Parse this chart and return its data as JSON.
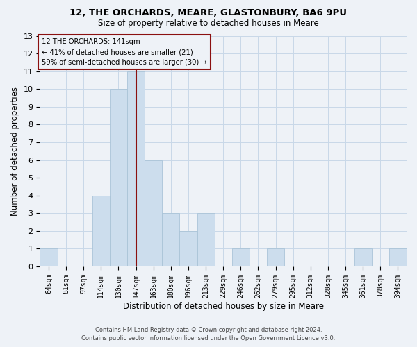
{
  "title": "12, THE ORCHARDS, MEARE, GLASTONBURY, BA6 9PU",
  "subtitle": "Size of property relative to detached houses in Meare",
  "xlabel": "Distribution of detached houses by size in Meare",
  "ylabel": "Number of detached properties",
  "footer_line1": "Contains HM Land Registry data © Crown copyright and database right 2024.",
  "footer_line2": "Contains public sector information licensed under the Open Government Licence v3.0.",
  "bar_labels": [
    "64sqm",
    "81sqm",
    "97sqm",
    "114sqm",
    "130sqm",
    "147sqm",
    "163sqm",
    "180sqm",
    "196sqm",
    "213sqm",
    "229sqm",
    "246sqm",
    "262sqm",
    "279sqm",
    "295sqm",
    "312sqm",
    "328sqm",
    "345sqm",
    "361sqm",
    "378sqm",
    "394sqm"
  ],
  "bar_values": [
    1,
    0,
    0,
    4,
    10,
    11,
    6,
    3,
    2,
    3,
    0,
    1,
    0,
    1,
    0,
    0,
    0,
    0,
    1,
    0,
    1
  ],
  "bar_color": "#ccdded",
  "bar_edge_color": "#aac4d8",
  "ylim": [
    0,
    13
  ],
  "yticks": [
    0,
    1,
    2,
    3,
    4,
    5,
    6,
    7,
    8,
    9,
    10,
    11,
    12,
    13
  ],
  "property_line_x": 5.0,
  "property_line_color": "#8b1010",
  "annotation_line1": "12 THE ORCHARDS: 141sqm",
  "annotation_line2": "← 41% of detached houses are smaller (21)",
  "annotation_line3": "59% of semi-detached houses are larger (30) →",
  "grid_color": "#c8d8e8",
  "background_color": "#eef2f7"
}
